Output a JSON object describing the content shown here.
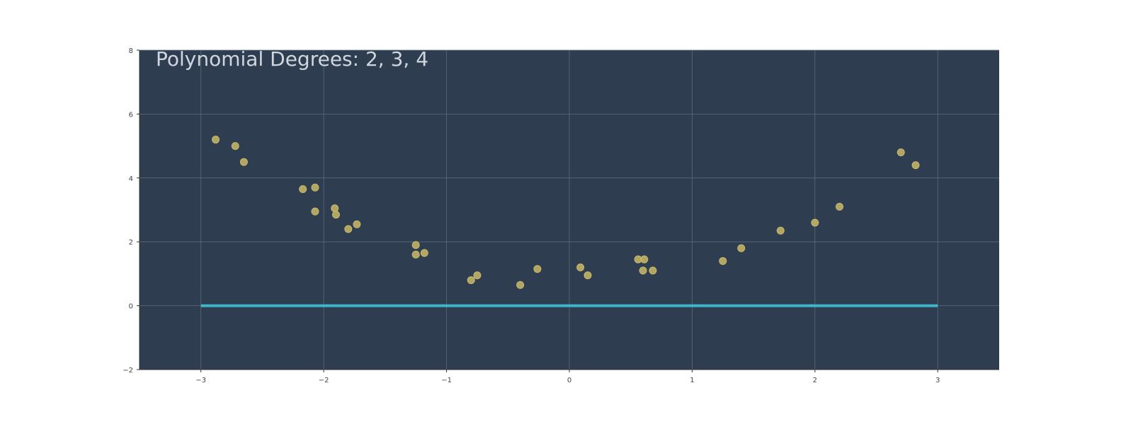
{
  "chart_data": {
    "type": "scatter",
    "title": "Polynomial Degrees: 2, 3, 4",
    "xlabel": "",
    "ylabel": "",
    "xlim": [
      -3.5,
      3.5
    ],
    "ylim": [
      -2,
      8
    ],
    "x_ticks": [
      -3,
      -2,
      -1,
      0,
      1,
      2,
      3
    ],
    "x_tick_labels": [
      "−3",
      "−2",
      "−1",
      "0",
      "1",
      "2",
      "3"
    ],
    "y_ticks": [
      -2,
      0,
      2,
      4,
      6,
      8
    ],
    "y_tick_labels": [
      "−2",
      "0",
      "2",
      "4",
      "6",
      "8"
    ],
    "grid": true,
    "colors": {
      "plot_background": "#2e3e50",
      "grid": "#5c6b7a",
      "points": "#c9b868",
      "fit_line": "#3fb5c9"
    },
    "series": [
      {
        "type": "scatter",
        "x": [
          -2.88,
          -2.72,
          -2.65,
          -2.17,
          -2.07,
          -2.07,
          -1.91,
          -1.9,
          -1.8,
          -1.73,
          -1.25,
          -1.25,
          -1.18,
          -0.8,
          -0.75,
          -0.4,
          -0.26,
          0.09,
          0.15,
          0.56,
          0.6,
          0.61,
          0.68,
          1.25,
          1.4,
          1.72,
          2.0,
          2.2,
          2.7,
          2.82
        ],
        "y": [
          5.2,
          5.0,
          4.5,
          3.65,
          3.7,
          2.95,
          3.05,
          2.85,
          2.4,
          2.55,
          1.9,
          1.6,
          1.65,
          0.8,
          0.95,
          0.65,
          1.15,
          1.2,
          0.95,
          1.45,
          1.1,
          1.45,
          1.1,
          1.4,
          1.8,
          2.35,
          2.6,
          3.1,
          4.8,
          4.4
        ]
      },
      {
        "type": "line",
        "x": [
          -3,
          3
        ],
        "y": [
          0,
          0
        ]
      }
    ]
  }
}
